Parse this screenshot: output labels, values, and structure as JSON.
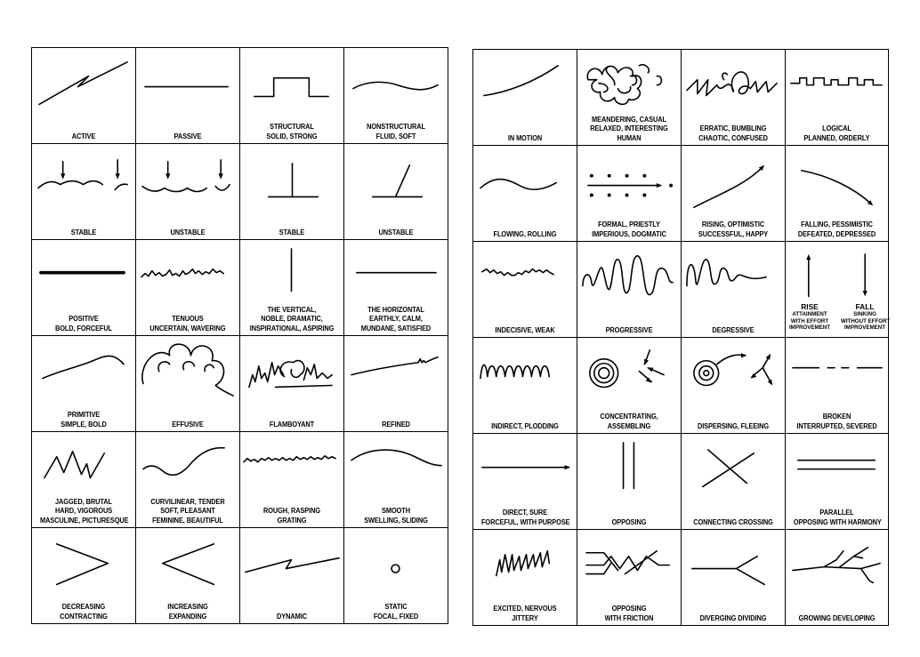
{
  "left": [
    [
      "ACTIVE"
    ],
    [
      "PASSIVE"
    ],
    [
      "STRUCTURAL",
      "SOLID, STRONG"
    ],
    [
      "NONSTRUCTURAL",
      "FLUID, SOFT"
    ],
    [
      "STABLE"
    ],
    [
      "UNSTABLE"
    ],
    [
      "STABLE"
    ],
    [
      "UNSTABLE"
    ],
    [
      "POSITIVE",
      "BOLD, FORCEFUL"
    ],
    [
      "TENUOUS",
      "UNCERTAIN, WAVERING"
    ],
    [
      "THE VERTICAL,",
      "NOBLE, DRAMATIC,",
      "INSPIRATIONAL, ASPIRING"
    ],
    [
      "THE HORIZONTAL",
      "EARTHLY, CALM,",
      "MUNDANE, SATISFIED"
    ],
    [
      "PRIMITIVE",
      "SIMPLE, BOLD"
    ],
    [
      "EFFUSIVE"
    ],
    [
      "FLAMBOYANT"
    ],
    [
      "REFINED"
    ],
    [
      "JAGGED, BRUTAL",
      "HARD, VIGOROUS",
      "MASCULINE, PICTURESQUE"
    ],
    [
      "CURVILINEAR, TENDER",
      "SOFT, PLEASANT",
      "FEMININE, BEAUTIFUL"
    ],
    [
      "ROUGH, RASPING",
      "GRATING"
    ],
    [
      "SMOOTH",
      "SWELLING, SLIDING"
    ],
    [
      "DECREASING",
      "CONTRACTING"
    ],
    [
      "INCREASING",
      "EXPANDING"
    ],
    [
      "DYNAMIC"
    ],
    [
      "STATIC",
      "FOCAL, FIXED"
    ]
  ],
  "right": [
    [
      "IN MOTION"
    ],
    [
      "MEANDERING, CASUAL",
      "RELAXED, INTERESTING",
      "HUMAN"
    ],
    [
      "ERRATIC, BUMBLING",
      "CHAOTIC, CONFUSED"
    ],
    [
      "LOGICAL",
      "PLANNED, ORDERLY"
    ],
    [
      "FLOWING, ROLLING"
    ],
    [
      "FORMAL, PRIESTLY",
      "IMPERIOUS, DOGMATIC"
    ],
    [
      "RISING, OPTIMISTIC",
      "SUCCESSFUL, HAPPY"
    ],
    [
      "FALLING, PESSIMISTIC",
      "DEFEATED, DEPRESSED"
    ],
    [
      "INDECISIVE, WEAK"
    ],
    [
      "PROGRESSIVE"
    ],
    [
      "DEGRESSIVE"
    ],
    [],
    [
      "INDIRECT, PLODDING"
    ],
    [
      "CONCENTRATING,",
      "ASSEMBLING"
    ],
    [
      "DISPERSING, FLEEING"
    ],
    [
      "BROKEN",
      "INTERRUPTED, SEVERED"
    ],
    [
      "DIRECT, SURE",
      "FORCEFUL, WITH PURPOSE"
    ],
    [
      "OPPOSING"
    ],
    [
      "CONNECTING CROSSING"
    ],
    [
      "PARALLEL",
      "OPPOSING WITH HARMONY"
    ],
    [
      "EXCITED, NERVOUS",
      "JITTERY"
    ],
    [
      "OPPOSING",
      "WITH FRICTION"
    ],
    [
      "DIVERGING DIVIDING"
    ],
    [
      "GROWING DEVELOPING"
    ]
  ],
  "rise_fall": {
    "rise": {
      "title": "RISE",
      "lines": [
        "ATTAINMENT",
        "WITH EFFORT",
        "IMPROVEMENT"
      ]
    },
    "fall": {
      "title": "FALL",
      "lines": [
        "SINKING",
        "WITHOUT EFFORT",
        "IMPROVEMENT"
      ]
    }
  }
}
